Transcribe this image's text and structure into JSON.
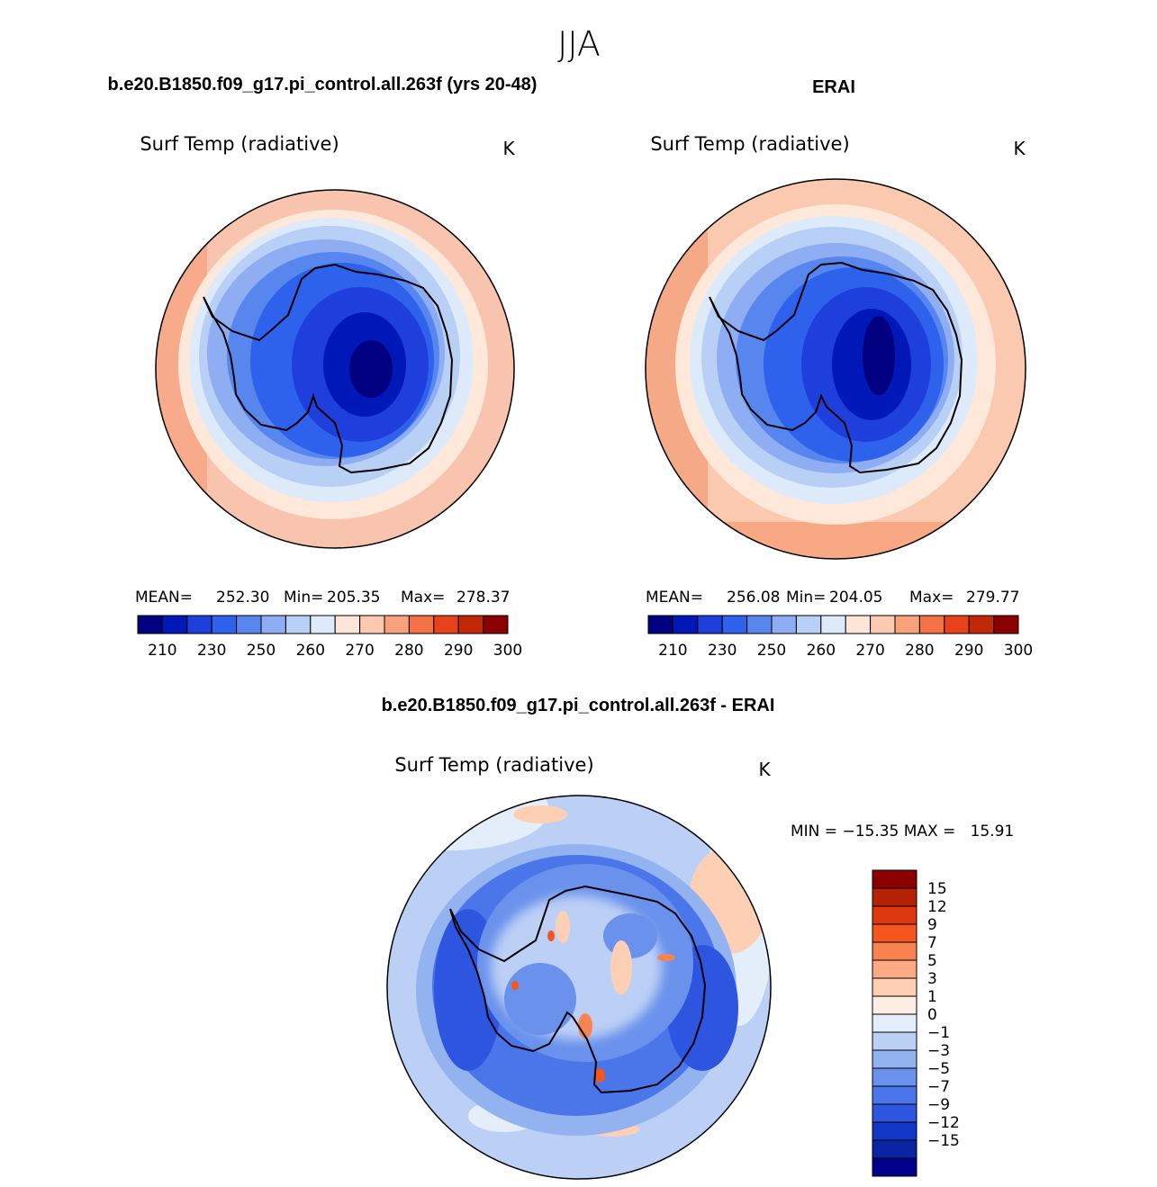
{
  "page_title": "JJA",
  "panels": [
    {
      "case_title": "b.e20.B1850.f09_g17.pi_control.all.263f (yrs 20-48)",
      "field": "Surf Temp (radiative)",
      "units": "K",
      "stats": {
        "mean_label": "MEAN=",
        "mean": "252.30",
        "min_label": "Min=",
        "min": "205.35",
        "max_label": "Max=",
        "max": "278.37"
      }
    },
    {
      "case_title": "ERAI",
      "field": "Surf Temp (radiative)",
      "units": "K",
      "stats": {
        "mean_label": "MEAN=",
        "mean": "256.08",
        "min_label": "Min=",
        "min": "204.05",
        "max_label": "Max=",
        "max": "279.77"
      }
    }
  ],
  "abs_colorbar": {
    "colors": [
      "#000080",
      "#0018b8",
      "#1e3fdc",
      "#2f62ec",
      "#5787ee",
      "#8eadf2",
      "#b8d0f5",
      "#ddeafa",
      "#fde6d7",
      "#fbc8b0",
      "#f8a27c",
      "#f57246",
      "#e8421c",
      "#c02808",
      "#8b0000"
    ],
    "labels": [
      "210",
      "230",
      "250",
      "260",
      "270",
      "280",
      "290",
      "300"
    ]
  },
  "diff_panel": {
    "title": "b.e20.B1850.f09_g17.pi_control.all.263f - ERAI",
    "field": "Surf Temp (radiative)",
    "units": "K",
    "stats_text": "MIN = −15.35 MAX =   15.91"
  },
  "diff_colorbar": {
    "colors": [
      "#8b0000",
      "#b52105",
      "#dd380e",
      "#f5551f",
      "#f98350",
      "#fca985",
      "#fdd0b6",
      "#feede2",
      "#e4eefb",
      "#bcd0f6",
      "#92b2f0",
      "#6a92ec",
      "#4a76ea",
      "#2d55e0",
      "#1237c8",
      "#0a24a4",
      "#00008b"
    ],
    "labels": [
      "15",
      "12",
      "9",
      "7",
      "5",
      "3",
      "1",
      "0",
      "−1",
      "−3",
      "−5",
      "−7",
      "−9",
      "−12",
      "−15"
    ]
  },
  "chart_data": [
    {
      "type": "heatmap",
      "title": "b.e20.B1850.f09_g17.pi_control.all.263f (yrs 20-48)",
      "subtitle": "Surf Temp (radiative)",
      "units": "K",
      "projection": "south polar stereographic",
      "mean": 252.3,
      "min": 205.35,
      "max": 278.37,
      "contour_levels": [
        210,
        220,
        230,
        240,
        250,
        255,
        260,
        265,
        270,
        275,
        280,
        285,
        290,
        295,
        300
      ]
    },
    {
      "type": "heatmap",
      "title": "ERAI",
      "subtitle": "Surf Temp (radiative)",
      "units": "K",
      "projection": "south polar stereographic",
      "mean": 256.08,
      "min": 204.05,
      "max": 279.77,
      "contour_levels": [
        210,
        220,
        230,
        240,
        250,
        255,
        260,
        265,
        270,
        275,
        280,
        285,
        290,
        295,
        300
      ]
    },
    {
      "type": "heatmap",
      "title": "b.e20.B1850.f09_g17.pi_control.all.263f - ERAI",
      "subtitle": "Surf Temp (radiative)",
      "units": "K",
      "projection": "south polar stereographic",
      "min": -15.35,
      "max": 15.91,
      "contour_levels": [
        -15,
        -12,
        -9,
        -7,
        -5,
        -3,
        -1,
        0,
        1,
        3,
        5,
        7,
        9,
        12,
        15
      ]
    }
  ]
}
